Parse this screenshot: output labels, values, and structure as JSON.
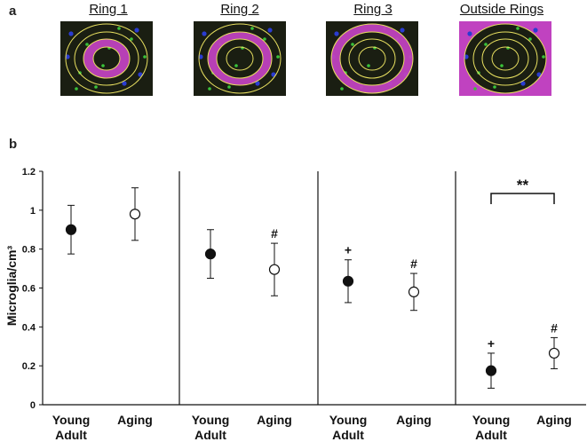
{
  "panel_labels": {
    "a": "a",
    "b": "b"
  },
  "images": [
    {
      "title": "Ring 1",
      "highlight": "ring1"
    },
    {
      "title": "Ring 2",
      "highlight": "ring2"
    },
    {
      "title": "Ring 3",
      "highlight": "ring3"
    },
    {
      "title": "Outside Rings",
      "highlight": "outside"
    }
  ],
  "colors": {
    "highlight": "#c042c0",
    "ring_line": "#e8e060",
    "tissue": "#1a1e12",
    "cell_green": "#3ac33a",
    "cell_blue": "#2a3cd0"
  },
  "chart_data": {
    "type": "scatter",
    "ylabel": "Microglia/cm³",
    "ylim": [
      0,
      1.2
    ],
    "yticks": [
      "0",
      "0.2",
      "0.4",
      "0.6",
      "0.8",
      "1",
      "1.2"
    ],
    "categories": [
      "Young Adult",
      "Aging"
    ],
    "category_lines": [
      [
        "Young",
        "Adult"
      ],
      [
        "Aging"
      ]
    ],
    "panels": [
      {
        "name": "Ring 1",
        "points": [
          {
            "group": "Young Adult",
            "value": 0.9,
            "error": 0.125,
            "marker": "filled",
            "annotation": ""
          },
          {
            "group": "Aging",
            "value": 0.98,
            "error": 0.135,
            "marker": "open",
            "annotation": ""
          }
        ]
      },
      {
        "name": "Ring 2",
        "points": [
          {
            "group": "Young Adult",
            "value": 0.775,
            "error": 0.125,
            "marker": "filled",
            "annotation": ""
          },
          {
            "group": "Aging",
            "value": 0.695,
            "error": 0.135,
            "marker": "open",
            "annotation": "#"
          }
        ]
      },
      {
        "name": "Ring 3",
        "points": [
          {
            "group": "Young Adult",
            "value": 0.635,
            "error": 0.11,
            "marker": "filled",
            "annotation": "+"
          },
          {
            "group": "Aging",
            "value": 0.58,
            "error": 0.095,
            "marker": "open",
            "annotation": "#"
          }
        ]
      },
      {
        "name": "Outside Rings",
        "points": [
          {
            "group": "Young Adult",
            "value": 0.175,
            "error": 0.09,
            "marker": "filled",
            "annotation": "+"
          },
          {
            "group": "Aging",
            "value": 0.265,
            "error": 0.08,
            "marker": "open",
            "annotation": "#"
          }
        ],
        "significance": "**"
      }
    ]
  }
}
